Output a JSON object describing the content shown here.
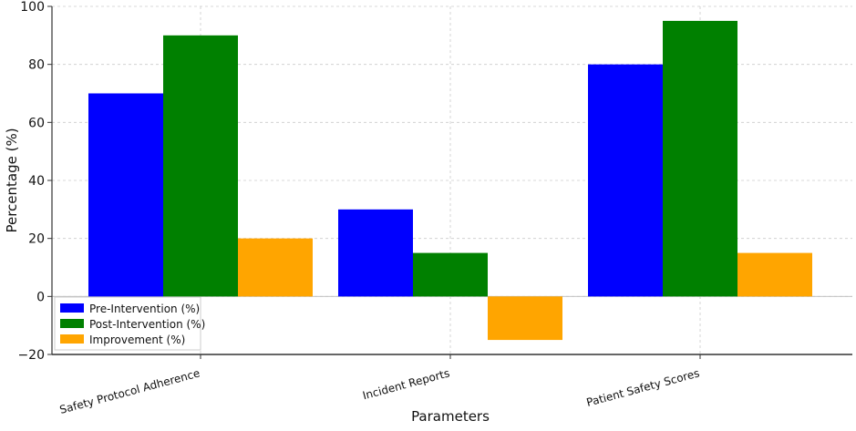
{
  "chart_data": {
    "type": "bar",
    "title": "",
    "xlabel": "Parameters",
    "ylabel": "Percentage (%)",
    "categories": [
      "Safety Protocol Adherence",
      "Incident Reports",
      "Patient Safety Scores"
    ],
    "series": [
      {
        "name": "Pre-Intervention (%)",
        "values": [
          70,
          30,
          80
        ],
        "color": "#0000ff"
      },
      {
        "name": "Post-Intervention (%)",
        "values": [
          90,
          15,
          95
        ],
        "color": "#008000"
      },
      {
        "name": "Improvement (%)",
        "values": [
          20,
          -15,
          15
        ],
        "color": "#ffa500"
      }
    ],
    "ylim": [
      -20,
      100
    ],
    "yticks": [
      -20,
      0,
      20,
      40,
      60,
      80,
      100
    ],
    "grid": true,
    "legend": "lower-left"
  }
}
